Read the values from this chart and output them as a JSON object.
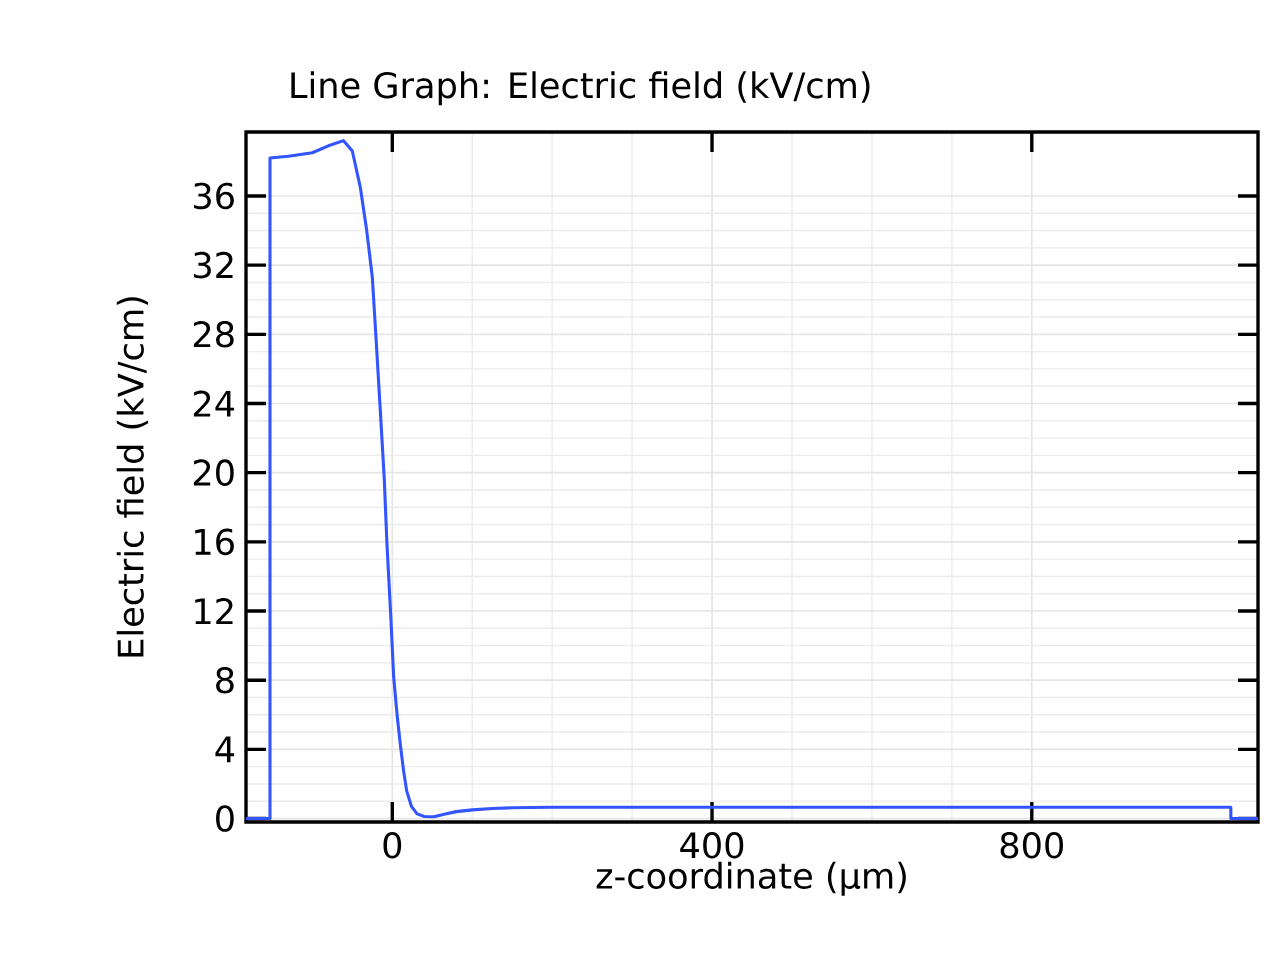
{
  "chart_data": {
    "type": "line",
    "title": "Line Graph: Electric field (kV/cm)",
    "xlabel": "z-coordinate (µm)",
    "ylabel": "Electric field (kV/cm)",
    "xlim": [
      -183,
      1083
    ],
    "ylim": [
      -0.2,
      39.7
    ],
    "xticks": [
      0,
      400,
      800
    ],
    "yticks": [
      0,
      4,
      8,
      12,
      16,
      20,
      24,
      28,
      32,
      36
    ],
    "grid": true,
    "series": [
      {
        "color": "#3355ff",
        "x": [
          -183,
          -153,
          -153,
          -130,
          -100,
          -80,
          -61,
          -50,
          -40,
          -32,
          -25,
          -20,
          -15,
          -10,
          -6.7,
          -2,
          1.7,
          6,
          10,
          14,
          18,
          24,
          31,
          40,
          52,
          65,
          80,
          100,
          125,
          150,
          200,
          300,
          500,
          700,
          900,
          1049,
          1049,
          1083
        ],
        "values": [
          0,
          0,
          38.2,
          38.3,
          38.5,
          38.9,
          39.2,
          38.6,
          36.5,
          34,
          31.3,
          27.5,
          23.6,
          19.6,
          15.9,
          11.8,
          8.2,
          6,
          4.3,
          2.8,
          1.6,
          0.7,
          0.27,
          0.12,
          0.1,
          0.25,
          0.4,
          0.5,
          0.58,
          0.62,
          0.65,
          0.65,
          0.65,
          0.65,
          0.65,
          0.65,
          0,
          0
        ]
      }
    ]
  }
}
